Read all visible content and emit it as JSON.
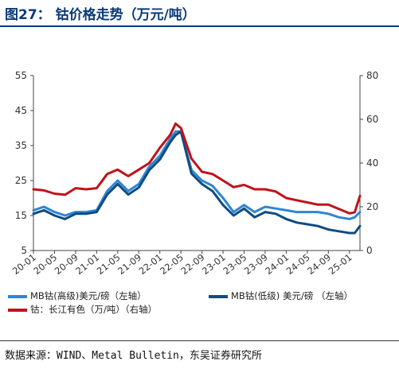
{
  "header": {
    "title": "图27：  钴价格走势（万元/吨）"
  },
  "footer": {
    "source": "数据来源：WIND、Metal Bulletin，东吴证券研究所"
  },
  "chart_data": {
    "type": "line",
    "x": [
      "2020-01",
      "2020-03",
      "2020-05",
      "2020-07",
      "2020-09",
      "2020-11",
      "2021-01",
      "2021-03",
      "2021-05",
      "2021-07",
      "2021-09",
      "2021-11",
      "2022-01",
      "2022-03",
      "2022-04",
      "2022-05",
      "2022-07",
      "2022-09",
      "2022-11",
      "2023-01",
      "2023-03",
      "2023-05",
      "2023-07",
      "2023-09",
      "2023-11",
      "2024-01",
      "2024-03",
      "2024-05",
      "2024-07",
      "2024-09",
      "2024-11",
      "2025-01",
      "2025-02",
      "2025-03"
    ],
    "x_tick_labels": [
      "20-01",
      "20-05",
      "20-09",
      "21-01",
      "21-05",
      "21-09",
      "22-01",
      "22-05",
      "22-09",
      "23-01",
      "23-05",
      "23-09",
      "24-01",
      "24-05",
      "24-09",
      "25-01"
    ],
    "left_axis": {
      "ylim": [
        5,
        55
      ],
      "ticks": [
        "5",
        "15",
        "25",
        "35",
        "45",
        "55"
      ]
    },
    "right_axis": {
      "ylim": [
        0,
        80
      ],
      "ticks": [
        "0",
        "20",
        "40",
        "60",
        "80"
      ]
    },
    "series": [
      {
        "name": "MB钴(高级)美元/磅（左轴）",
        "axis": "left",
        "color": "#2f86d1",
        "values": [
          16.5,
          17.5,
          16.0,
          15.0,
          16.0,
          16.0,
          16.5,
          22.0,
          25.0,
          22.0,
          24.0,
          29.0,
          32.0,
          37.0,
          39.0,
          39.0,
          28.0,
          25.0,
          23.5,
          20.0,
          16.0,
          18.0,
          16.0,
          17.5,
          17.0,
          16.5,
          16.0,
          16.0,
          16.0,
          15.5,
          14.5,
          14.0,
          14.5,
          16.0
        ]
      },
      {
        "name": "MB钴(低级) 美元/磅 （左轴）",
        "axis": "left",
        "color": "#0f4c81",
        "values": [
          15.5,
          16.5,
          15.0,
          14.0,
          15.5,
          15.5,
          16.0,
          21.0,
          24.0,
          21.0,
          23.0,
          28.0,
          31.0,
          36.0,
          38.0,
          39.0,
          27.0,
          24.0,
          22.0,
          18.0,
          15.0,
          17.0,
          14.5,
          16.0,
          15.5,
          14.0,
          13.0,
          12.5,
          12.0,
          11.0,
          10.5,
          10.0,
          10.0,
          12.0
        ]
      },
      {
        "name": "钴：长江有色（万/吨）（右轴）",
        "axis": "right",
        "color": "#c0121a",
        "values": [
          28.0,
          27.5,
          26.0,
          25.5,
          28.5,
          28.0,
          28.5,
          35.0,
          37.0,
          34.0,
          37.0,
          40.0,
          47.0,
          53.0,
          58.0,
          56.0,
          42.0,
          36.0,
          35.0,
          32.0,
          29.0,
          30.0,
          28.0,
          28.0,
          27.0,
          24.0,
          23.0,
          22.0,
          21.0,
          21.0,
          19.0,
          17.0,
          17.5,
          25.0
        ]
      }
    ],
    "grid": false,
    "legend_position": "bottom"
  }
}
